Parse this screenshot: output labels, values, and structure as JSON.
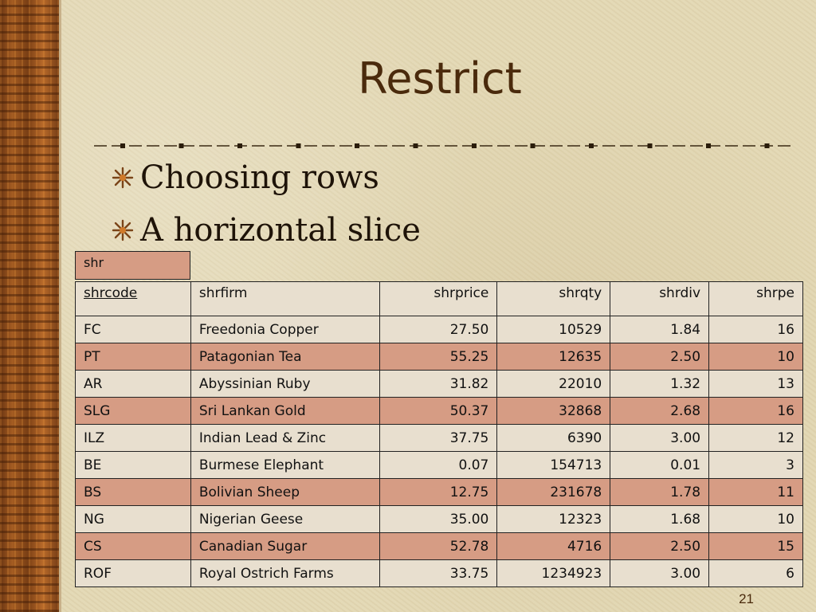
{
  "slide": {
    "title": "Restrict",
    "bullets": [
      "Choosing rows",
      "A horizontal slice"
    ],
    "page_number": "21"
  },
  "table": {
    "name": "shr",
    "columns": [
      {
        "label": "shrcode",
        "align": "left",
        "key": true
      },
      {
        "label": "shrfirm",
        "align": "left",
        "key": false
      },
      {
        "label": "shrprice",
        "align": "right",
        "key": false
      },
      {
        "label": "shrqty",
        "align": "right",
        "key": false
      },
      {
        "label": "shrdiv",
        "align": "right",
        "key": false
      },
      {
        "label": "shrpe",
        "align": "right",
        "key": false
      }
    ],
    "rows": [
      [
        "FC",
        "Freedonia Copper",
        "27.50",
        "10529",
        "1.84",
        "16"
      ],
      [
        "PT",
        "Patagonian Tea",
        "55.25",
        "12635",
        "2.50",
        "10"
      ],
      [
        "AR",
        "Abyssinian Ruby",
        "31.82",
        "22010",
        "1.32",
        "13"
      ],
      [
        "SLG",
        "Sri Lankan Gold",
        "50.37",
        "32868",
        "2.68",
        "16"
      ],
      [
        "ILZ",
        "Indian Lead & Zinc",
        "37.75",
        "6390",
        "3.00",
        "12"
      ],
      [
        "BE",
        "Burmese Elephant",
        "0.07",
        "154713",
        "0.01",
        "3"
      ],
      [
        "BS",
        "Bolivian Sheep",
        "12.75",
        "231678",
        "1.78",
        "11"
      ],
      [
        "NG",
        "Nigerian Geese",
        "35.00",
        "12323",
        "1.68",
        "10"
      ],
      [
        "CS",
        "Canadian Sugar",
        "52.78",
        "4716",
        "2.50",
        "15"
      ],
      [
        "ROF",
        "Royal Ostrich Farms",
        "33.75",
        "1234923",
        "3.00",
        "6"
      ]
    ]
  },
  "colors": {
    "title": "#4a2a0c",
    "row_light": "#e8dfcf",
    "row_highlight": "#d69c84",
    "background": "#e3d8b4"
  },
  "icons": {
    "bullet": "star-burst-icon",
    "rule_marker": "square-dot-icon"
  }
}
